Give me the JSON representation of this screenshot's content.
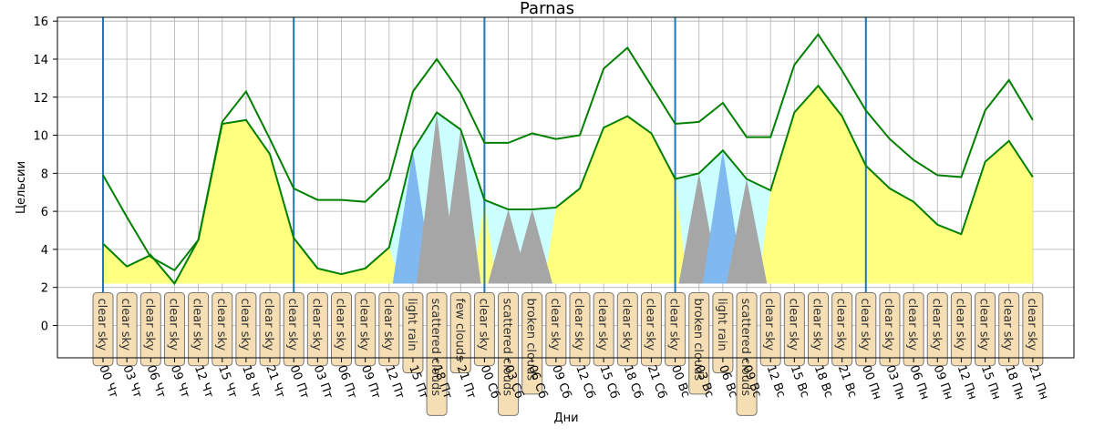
{
  "chart_data": {
    "type": "line",
    "title": "Parnas",
    "xlabel": "Дни",
    "ylabel": "Цельсии",
    "ylim": [
      -1.7,
      16.2
    ],
    "yticks": [
      0,
      2,
      4,
      6,
      8,
      10,
      12,
      14,
      16
    ],
    "grid": true,
    "categories": [
      "00 Чт",
      "03 Чт",
      "06 Чт",
      "09 Чт",
      "12 Чт",
      "15 Чт",
      "18 Чт",
      "21 Чт",
      "00 Пт",
      "03 Пт",
      "06 Пт",
      "09 Пт",
      "12 Пт",
      "15 Пт",
      "18 Пт",
      "21 Пт",
      "00 Сб",
      "03 Сб",
      "06 Сб",
      "09 Сб",
      "12 Сб",
      "15 Сб",
      "18 Сб",
      "21 Сб",
      "00 Вс",
      "03 Вс",
      "06 Вс",
      "09 Вс",
      "12 Вс",
      "15 Вс",
      "18 Вс",
      "21 Вс",
      "00 Пн",
      "03 Пн",
      "06 Пн",
      "09 Пн",
      "12 Пн",
      "15 Пн",
      "18 Пн",
      "21 Пн"
    ],
    "series": [
      {
        "values": [
          7.9,
          5.7,
          3.6,
          2.9,
          4.5,
          10.7,
          12.3,
          9.8,
          7.2,
          6.6,
          6.6,
          6.5,
          7.7,
          12.3,
          14.0,
          12.2,
          9.6,
          9.6,
          10.1,
          9.8,
          10.0,
          13.5,
          14.6,
          12.6,
          10.6,
          10.7,
          11.7,
          9.9,
          9.9,
          13.7,
          15.3,
          13.4,
          11.3,
          9.8,
          8.7,
          7.9,
          7.8,
          11.3,
          12.9,
          10.8
        ],
        "color": "#008000"
      },
      {
        "values": [
          4.3,
          3.1,
          3.7,
          2.2,
          4.5,
          10.6,
          10.8,
          9.0,
          4.6,
          3.0,
          2.7,
          3.0,
          4.1,
          9.2,
          11.2,
          10.3,
          6.6,
          6.1,
          6.1,
          6.2,
          7.2,
          10.4,
          11.0,
          10.1,
          7.7,
          8.0,
          9.2,
          7.7,
          7.1,
          11.2,
          12.6,
          11.0,
          8.4,
          7.2,
          6.5,
          5.3,
          4.8,
          8.6,
          9.7,
          7.8
        ],
        "color": "#008000"
      }
    ],
    "weather": [
      "clear sky",
      "clear sky",
      "clear sky",
      "clear sky",
      "clear sky",
      "clear sky",
      "clear sky",
      "clear sky",
      "clear sky",
      "clear sky",
      "clear sky",
      "clear sky",
      "clear sky",
      "light rain",
      "scattered clouds",
      "few clouds",
      "clear sky",
      "scattered clouds",
      "broken clouds",
      "clear sky",
      "clear sky",
      "clear sky",
      "clear sky",
      "clear sky",
      "clear sky",
      "broken clouds",
      "light rain",
      "scattered clouds",
      "clear sky",
      "clear sky",
      "clear sky",
      "clear sky",
      "clear sky",
      "clear sky",
      "clear sky",
      "clear sky",
      "clear sky",
      "clear sky",
      "clear sky",
      "clear sky"
    ],
    "day_markers": [
      "00 Чт",
      "00 Пт",
      "00 Сб",
      "00 Вс",
      "00 Пн"
    ],
    "colors": {
      "line": "#008000",
      "clear": "#ffff80",
      "rain": "#80b8f0",
      "clouds": "#a6a6a6",
      "band": "#ccffff",
      "day_line": "#1f77b4",
      "grid": "#b0b0b0",
      "label_bg": "#f5deb3"
    }
  }
}
